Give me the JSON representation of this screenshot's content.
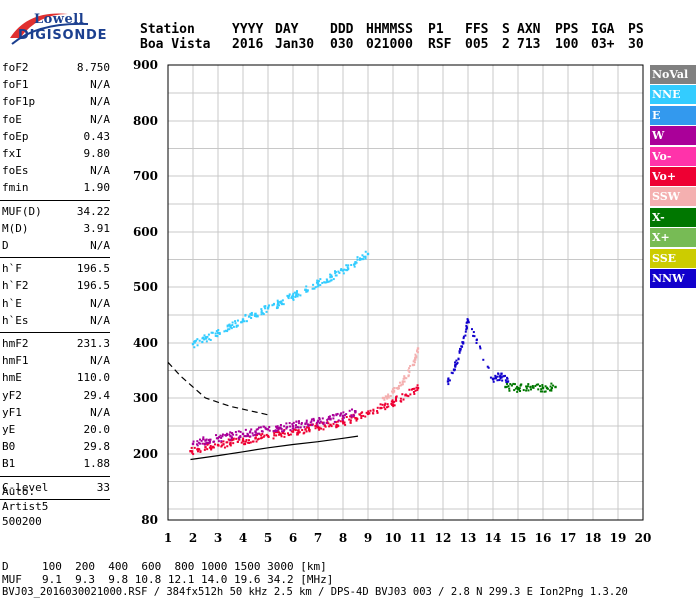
{
  "logo": {
    "line1": "Lowell",
    "line2": "DIGISONDE"
  },
  "header": {
    "labels": [
      "Station",
      "YYYY",
      "DAY",
      "DDD",
      "HHMMSS",
      "P1",
      "FFS",
      "S",
      "AXN",
      "PPS",
      "IGA",
      "PS"
    ],
    "values": [
      "Boa Vista",
      "2016",
      "Jan30",
      "030",
      "021000",
      "RSF",
      "005",
      "2",
      "713",
      "100",
      "03+",
      "30"
    ]
  },
  "params_group1": [
    {
      "name": "foF2",
      "value": "8.750"
    },
    {
      "name": "foF1",
      "value": "N/A"
    },
    {
      "name": "foF1p",
      "value": "N/A"
    },
    {
      "name": "foE",
      "value": "N/A"
    },
    {
      "name": "foEp",
      "value": "0.43"
    },
    {
      "name": "fxI",
      "value": "9.80"
    },
    {
      "name": "foEs",
      "value": "N/A"
    },
    {
      "name": "fmin",
      "value": "1.90"
    }
  ],
  "params_group2": [
    {
      "name": "MUF(D)",
      "value": "34.22"
    },
    {
      "name": "M(D)",
      "value": "3.91"
    },
    {
      "name": "D",
      "value": "N/A"
    }
  ],
  "params_group3": [
    {
      "name": "h`F",
      "value": "196.5"
    },
    {
      "name": "h`F2",
      "value": "196.5"
    },
    {
      "name": "h`E",
      "value": "N/A"
    },
    {
      "name": "h`Es",
      "value": "N/A"
    }
  ],
  "params_group4": [
    {
      "name": "hmF2",
      "value": "231.3"
    },
    {
      "name": "hmF1",
      "value": "N/A"
    },
    {
      "name": "hmE",
      "value": "110.0"
    },
    {
      "name": "yF2",
      "value": "29.4"
    },
    {
      "name": "yF1",
      "value": "N/A"
    },
    {
      "name": "yE",
      "value": "20.0"
    },
    {
      "name": "B0",
      "value": "29.8"
    },
    {
      "name": "B1",
      "value": "1.88"
    }
  ],
  "params_group5": [
    {
      "name": "C-level",
      "value": "33"
    }
  ],
  "auto": {
    "line1": "Auto:",
    "line2": "Artist5",
    "line3": "500200"
  },
  "legend": [
    {
      "label": "NoVal",
      "color": "#808080"
    },
    {
      "label": "NNE",
      "color": "#33ccff"
    },
    {
      "label": "E",
      "color": "#3399ee"
    },
    {
      "label": "W",
      "color": "#aa0099"
    },
    {
      "label": "Vo-",
      "color": "#ff33aa"
    },
    {
      "label": "Vo+",
      "color": "#ee0033"
    },
    {
      "label": "SSW",
      "color": "#f4b0b0"
    },
    {
      "label": "X-",
      "color": "#007700"
    },
    {
      "label": "X+",
      "color": "#77bb55"
    },
    {
      "label": "SSE",
      "color": "#cccc00"
    },
    {
      "label": "NNW",
      "color": "#1100cc"
    }
  ],
  "footer": {
    "d_label": "D",
    "d_values": "100  200  400  600  800 1000 1500 3000 [km]",
    "muf_label": "MUF",
    "muf_values": "9.1  9.3  9.8 10.8 12.1 14.0 19.6 34.2 [MHz]",
    "file_line": "BVJ03_2016030021000.RSF / 384fx512h 50 kHz 2.5 km / DPS-4D BVJ03 003 / 2.8 N 299.3 E Ion2Png 1.3.20"
  },
  "chart_data": {
    "type": "scatter",
    "title": "",
    "xlabel": "",
    "ylabel": "",
    "xlim": [
      1,
      20
    ],
    "ylim": [
      80,
      900
    ],
    "x_ticks": [
      1,
      2,
      3,
      4,
      5,
      6,
      7,
      8,
      9,
      10,
      11,
      12,
      13,
      14,
      15,
      16,
      17,
      18,
      19,
      20
    ],
    "y_ticks": [
      80,
      200,
      300,
      400,
      500,
      600,
      700,
      800,
      900
    ],
    "grid": true,
    "series": [
      {
        "name": "Vo- / Vo+",
        "color": "#ee0033",
        "x": [
          1.9,
          2.5,
          3.0,
          3.5,
          4.0,
          4.5,
          5.0,
          5.5,
          6.0,
          6.5,
          7.0,
          7.5,
          8.0,
          8.5,
          9.0,
          9.5,
          10.0,
          10.5,
          11.0
        ],
        "y": [
          205,
          212,
          216,
          220,
          224,
          228,
          232,
          236,
          240,
          244,
          248,
          252,
          258,
          264,
          272,
          282,
          292,
          305,
          318
        ]
      },
      {
        "name": "W",
        "color": "#aa0099",
        "x": [
          2.0,
          2.5,
          3.0,
          3.5,
          4.0,
          4.5,
          5.0,
          5.5,
          6.0,
          6.5,
          7.0,
          7.5,
          8.0,
          8.5
        ],
        "y": [
          218,
          224,
          228,
          232,
          236,
          240,
          244,
          247,
          250,
          254,
          258,
          262,
          268,
          276
        ]
      },
      {
        "name": "NNE",
        "color": "#33ccff",
        "x": [
          2.0,
          2.5,
          3.0,
          3.5,
          4.0,
          4.5,
          5.0,
          5.5,
          6.0,
          6.5,
          7.0,
          7.5,
          8.0,
          8.5,
          9.0
        ],
        "y": [
          398,
          408,
          418,
          430,
          442,
          452,
          462,
          472,
          483,
          495,
          506,
          518,
          530,
          545,
          560
        ]
      },
      {
        "name": "SSW",
        "color": "#f4b0b0",
        "x": [
          9.6,
          10.0,
          10.4,
          10.8,
          11.0
        ],
        "y": [
          300,
          310,
          330,
          360,
          390
        ]
      },
      {
        "name": "NNW",
        "color": "#1100cc",
        "x": [
          12.2,
          12.5,
          12.8,
          13.0,
          14.0,
          14.3,
          14.6
        ],
        "y": [
          330,
          360,
          400,
          440,
          335,
          340,
          330
        ]
      },
      {
        "name": "X-",
        "color": "#007700",
        "x": [
          14.5,
          15.0,
          15.5,
          16.0,
          16.5
        ],
        "y": [
          320,
          318,
          320,
          318,
          320
        ]
      }
    ],
    "curves": [
      {
        "name": "fitted profile",
        "x": [
          1.9,
          3.0,
          4.0,
          5.0,
          6.0,
          7.0,
          8.0,
          8.6
        ],
        "y": [
          190,
          197,
          204,
          211,
          217,
          222,
          228,
          232
        ]
      },
      {
        "name": "dashed profile",
        "x": [
          1.0,
          1.5,
          2.5,
          3.5,
          4.5,
          5.0
        ],
        "y": [
          365,
          340,
          300,
          285,
          275,
          270
        ]
      }
    ]
  }
}
